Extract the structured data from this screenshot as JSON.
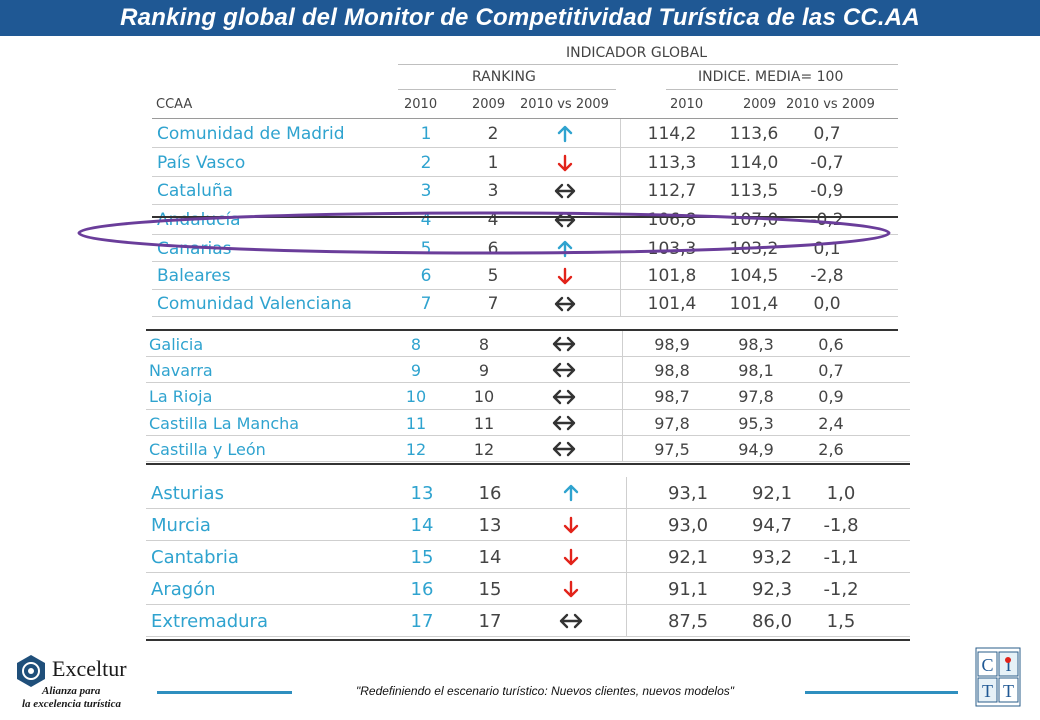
{
  "title": "Ranking global del Monitor de Competitividad Turística de las CC.AA",
  "colors": {
    "title_bg": "#1f5894",
    "name_text": "#2fa3cf",
    "up_arrow": "#2fa3cf",
    "down_arrow": "#e2231a",
    "equal_arrow": "#333333",
    "highlight_ellipse": "#6a3d9a",
    "footer_line": "#2f8fbf"
  },
  "header": {
    "group_title": "INDICADOR GLOBAL",
    "ranking_title": "RANKING",
    "index_title": "INDICE. MEDIA= 100",
    "col_ccaa": "CCAA",
    "col_rank_2010": "2010",
    "col_rank_2009": "2009",
    "col_rank_diff": "2010 vs 2009",
    "col_idx_2010": "2010",
    "col_idx_2009": "2009",
    "col_idx_diff": "2010 vs 2009"
  },
  "rows": [
    {
      "name": "Comunidad de Madrid",
      "r2010": "1",
      "r2009": "2",
      "trend": "up",
      "i2010": "114,2",
      "i2009": "113,6",
      "diff": "0,7"
    },
    {
      "name": "País Vasco",
      "r2010": "2",
      "r2009": "1",
      "trend": "down",
      "i2010": "113,3",
      "i2009": "114,0",
      "diff": "-0,7"
    },
    {
      "name": "Cataluña",
      "r2010": "3",
      "r2009": "3",
      "trend": "equal",
      "i2010": "112,7",
      "i2009": "113,5",
      "diff": "-0,9"
    },
    {
      "name": "Andalucía",
      "r2010": "4",
      "r2009": "4",
      "trend": "equal",
      "i2010": "106,8",
      "i2009": "107,0",
      "diff": "-0,2"
    },
    {
      "name": "Canarias",
      "r2010": "5",
      "r2009": "6",
      "trend": "up",
      "i2010": "103,3",
      "i2009": "103,2",
      "diff": "0,1"
    },
    {
      "name": "Baleares",
      "r2010": "6",
      "r2009": "5",
      "trend": "down",
      "i2010": "101,8",
      "i2009": "104,5",
      "diff": "-2,8"
    },
    {
      "name": "Comunidad Valenciana",
      "r2010": "7",
      "r2009": "7",
      "trend": "equal",
      "i2010": "101,4",
      "i2009": "101,4",
      "diff": "0,0"
    },
    {
      "name": "Galicia",
      "r2010": "8",
      "r2009": "8",
      "trend": "equal",
      "i2010": "98,9",
      "i2009": "98,3",
      "diff": "0,6"
    },
    {
      "name": "Navarra",
      "r2010": "9",
      "r2009": "9",
      "trend": "equal",
      "i2010": "98,8",
      "i2009": "98,1",
      "diff": "0,7"
    },
    {
      "name": "La Rioja",
      "r2010": "10",
      "r2009": "10",
      "trend": "equal",
      "i2010": "98,7",
      "i2009": "97,8",
      "diff": "0,9"
    },
    {
      "name": "Castilla La Mancha",
      "r2010": "11",
      "r2009": "11",
      "trend": "equal",
      "i2010": "97,8",
      "i2009": "95,3",
      "diff": "2,4"
    },
    {
      "name": "Castilla y León",
      "r2010": "12",
      "r2009": "12",
      "trend": "equal",
      "i2010": "97,5",
      "i2009": "94,9",
      "diff": "2,6"
    },
    {
      "name": "Asturias",
      "r2010": "13",
      "r2009": "16",
      "trend": "up",
      "i2010": "93,1",
      "i2009": "92,1",
      "diff": "1,0"
    },
    {
      "name": "Murcia",
      "r2010": "14",
      "r2009": "13",
      "trend": "down",
      "i2010": "93,0",
      "i2009": "94,7",
      "diff": "-1,8"
    },
    {
      "name": "Cantabria",
      "r2010": "15",
      "r2009": "14",
      "trend": "down",
      "i2010": "92,1",
      "i2009": "93,2",
      "diff": "-1,1"
    },
    {
      "name": "Aragón",
      "r2010": "16",
      "r2009": "15",
      "trend": "down",
      "i2010": "91,1",
      "i2009": "92,3",
      "diff": "-1,2"
    },
    {
      "name": "Extremadura",
      "r2010": "17",
      "r2009": "17",
      "trend": "equal",
      "i2010": "87,5",
      "i2009": "86,0",
      "diff": "1,5"
    }
  ],
  "footer": {
    "text": "\"Redefiniendo el escenario turístico: Nuevos clientes, nuevos modelos\"",
    "exceltur_brand": "Exceltur",
    "exceltur_tagline_1": "Alianza para",
    "exceltur_tagline_2": "la excelencia turística",
    "cit_logo_letters": [
      "C",
      "I",
      "T",
      "T"
    ]
  }
}
